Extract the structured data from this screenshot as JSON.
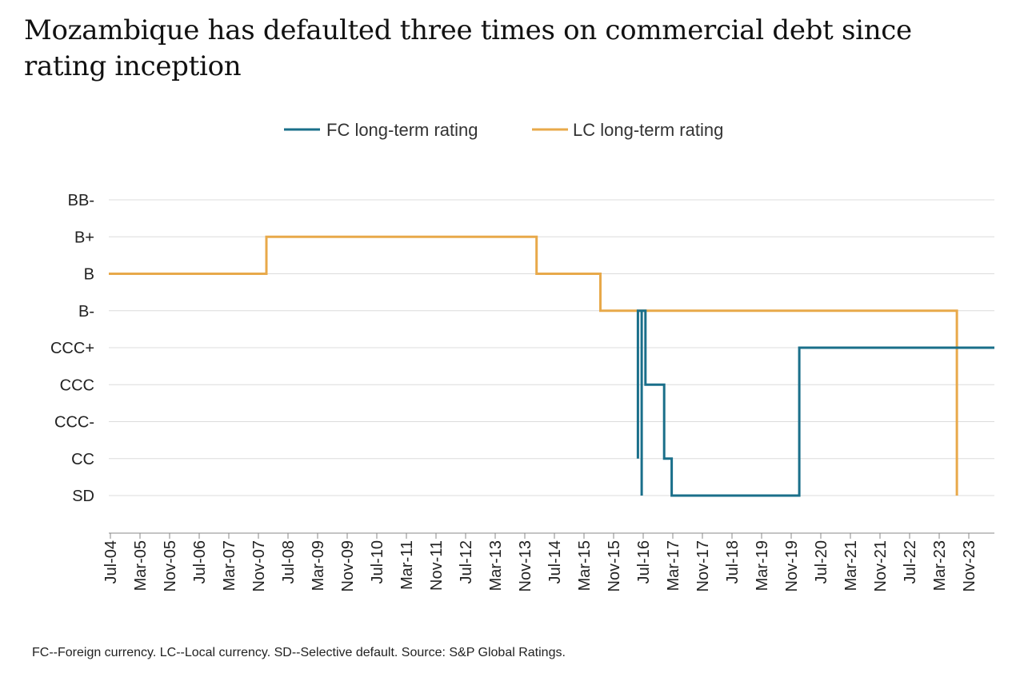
{
  "title": "Mozambique has defaulted three times on commercial debt since rating inception",
  "footnote": "FC--Foreign currency. LC--Local currency. SD--Selective default. Source: S&P Global Ratings.",
  "colors": {
    "fc": "#1a6f8a",
    "lc": "#e8a94a",
    "grid": "#dcdcdc",
    "axis": "#888888"
  },
  "chart_data": {
    "type": "line",
    "step": true,
    "legend": {
      "position": "top-center",
      "entries": [
        "FC long-term rating",
        "LC long-term rating"
      ]
    },
    "grid": true,
    "y_categories": [
      "SD",
      "CC",
      "CCC-",
      "CCC",
      "CCC+",
      "B-",
      "B",
      "B+",
      "BB-"
    ],
    "x_tick_labels": [
      "Jul-04",
      "Mar-05",
      "Nov-05",
      "Jul-06",
      "Mar-07",
      "Nov-07",
      "Jul-08",
      "Mar-09",
      "Nov-09",
      "Jul-10",
      "Mar-11",
      "Nov-11",
      "Jul-12",
      "Mar-13",
      "Nov-13",
      "Jul-14",
      "Mar-15",
      "Nov-15",
      "Jul-16",
      "Mar-17",
      "Nov-17",
      "Jul-18",
      "Mar-19",
      "Nov-19",
      "Jul-20",
      "Mar-21",
      "Nov-21",
      "Jul-22",
      "Mar-23",
      "Nov-23"
    ],
    "x_range": [
      "2004-07",
      "2024-03"
    ],
    "series": [
      {
        "name": "FC long-term rating",
        "color": "#1a6f8a",
        "points": [
          {
            "date": "2016-04",
            "rating": "B-"
          },
          {
            "date": "2016-04",
            "rating": "CC"
          },
          {
            "date": "2016-04",
            "rating": "B-"
          },
          {
            "date": "2016-05",
            "rating": "B-"
          },
          {
            "date": "2016-05",
            "rating": "CC"
          },
          {
            "date": "2016-05",
            "rating": "SD"
          },
          {
            "date": "2016-05",
            "rating": "B-"
          },
          {
            "date": "2016-06",
            "rating": "B-"
          },
          {
            "date": "2016-06",
            "rating": "CCC"
          },
          {
            "date": "2016-11",
            "rating": "CCC"
          },
          {
            "date": "2016-11",
            "rating": "CC"
          },
          {
            "date": "2017-01",
            "rating": "CC"
          },
          {
            "date": "2017-01",
            "rating": "SD"
          },
          {
            "date": "2019-11",
            "rating": "SD"
          },
          {
            "date": "2019-11",
            "rating": "CCC+"
          },
          {
            "date": "2024-03",
            "rating": "CCC+"
          }
        ]
      },
      {
        "name": "LC long-term rating",
        "color": "#e8a94a",
        "points": [
          {
            "date": "2004-07",
            "rating": "B"
          },
          {
            "date": "2008-01",
            "rating": "B"
          },
          {
            "date": "2008-01",
            "rating": "B+"
          },
          {
            "date": "2014-01",
            "rating": "B+"
          },
          {
            "date": "2014-01",
            "rating": "B"
          },
          {
            "date": "2015-06",
            "rating": "B"
          },
          {
            "date": "2015-06",
            "rating": "B-"
          },
          {
            "date": "2023-05",
            "rating": "B-"
          },
          {
            "date": "2023-05",
            "rating": "SD"
          },
          {
            "date": "2023-05",
            "rating": "CCC+"
          },
          {
            "date": "2024-03",
            "rating": "CCC+"
          }
        ]
      }
    ]
  }
}
